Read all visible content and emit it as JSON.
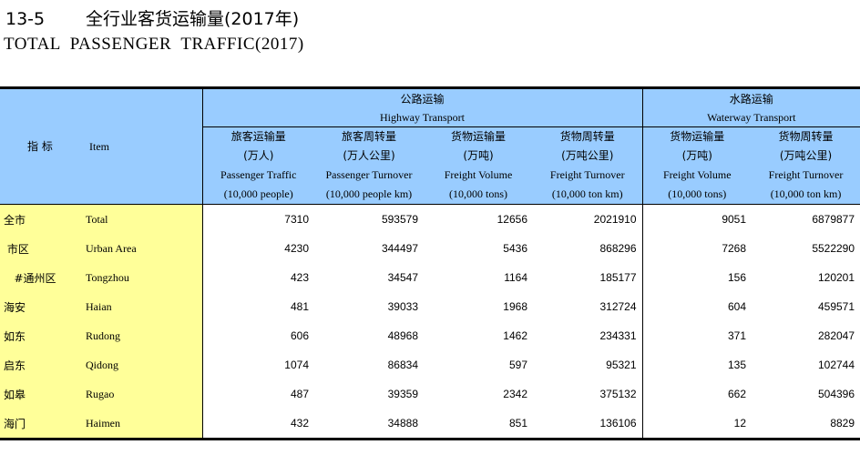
{
  "title": {
    "number": "13-5",
    "zh": "全行业客货运输量(2017年)",
    "en": "TOTAL  PASSENGER  TRAFFIC(2017)"
  },
  "header": {
    "indicator_zh": "指  标",
    "indicator_en": "Item",
    "highway": {
      "zh": "公路运输",
      "en": "Highway Transport"
    },
    "waterway": {
      "zh": "水路运输",
      "en": "Waterway Transport"
    },
    "columns": [
      {
        "zh": "旅客运输量",
        "unit_zh": "(万人)",
        "en": "Passenger Traffic",
        "unit_en": "(10,000 people)"
      },
      {
        "zh": "旅客周转量",
        "unit_zh": "(万人公里)",
        "en": "Passenger Turnover",
        "unit_en": "(10,000 people km)"
      },
      {
        "zh": "货物运输量",
        "unit_zh": "(万吨)",
        "en": "Freight Volume",
        "unit_en": "(10,000 tons)"
      },
      {
        "zh": "货物周转量",
        "unit_zh": "(万吨公里)",
        "en": "Freight Turnover",
        "unit_en": "(10,000 ton km)"
      },
      {
        "zh": "货物运输量",
        "unit_zh": "(万吨)",
        "en": "Freight Volume",
        "unit_en": "(10,000 tons)"
      },
      {
        "zh": "货物周转量",
        "unit_zh": "(万吨公里)",
        "en": "Freight Turnover",
        "unit_en": "(10,000 ton km)"
      }
    ]
  },
  "rows": [
    {
      "zh": "全市",
      "en": "Total",
      "values": [
        "7310",
        "593579",
        "12656",
        "2021910",
        "9051",
        "6879877"
      ]
    },
    {
      "zh": " 市区",
      "en": "Urban Area",
      "values": [
        "4230",
        "344497",
        "5436",
        "868296",
        "7268",
        "5522290"
      ]
    },
    {
      "zh": "   #通州区",
      "en": "Tongzhou",
      "values": [
        "423",
        "34547",
        "1164",
        "185177",
        "156",
        "120201"
      ]
    },
    {
      "zh": "海安",
      "en": "Haian",
      "values": [
        "481",
        "39033",
        "1968",
        "312724",
        "604",
        "459571"
      ]
    },
    {
      "zh": "如东",
      "en": "Rudong",
      "values": [
        "606",
        "48968",
        "1462",
        "234331",
        "371",
        "282047"
      ]
    },
    {
      "zh": "启东",
      "en": "Qidong",
      "values": [
        "1074",
        "86834",
        "597",
        "95321",
        "135",
        "102744"
      ]
    },
    {
      "zh": "如皋",
      "en": "Rugao",
      "values": [
        "487",
        "39359",
        "2342",
        "375132",
        "662",
        "504396"
      ]
    },
    {
      "zh": "海门",
      "en": "Haimen",
      "values": [
        "432",
        "34888",
        "851",
        "136106",
        "12",
        "8829"
      ]
    }
  ],
  "colors": {
    "header_bg": "#99ccff",
    "item_bg": "#ffff99"
  }
}
